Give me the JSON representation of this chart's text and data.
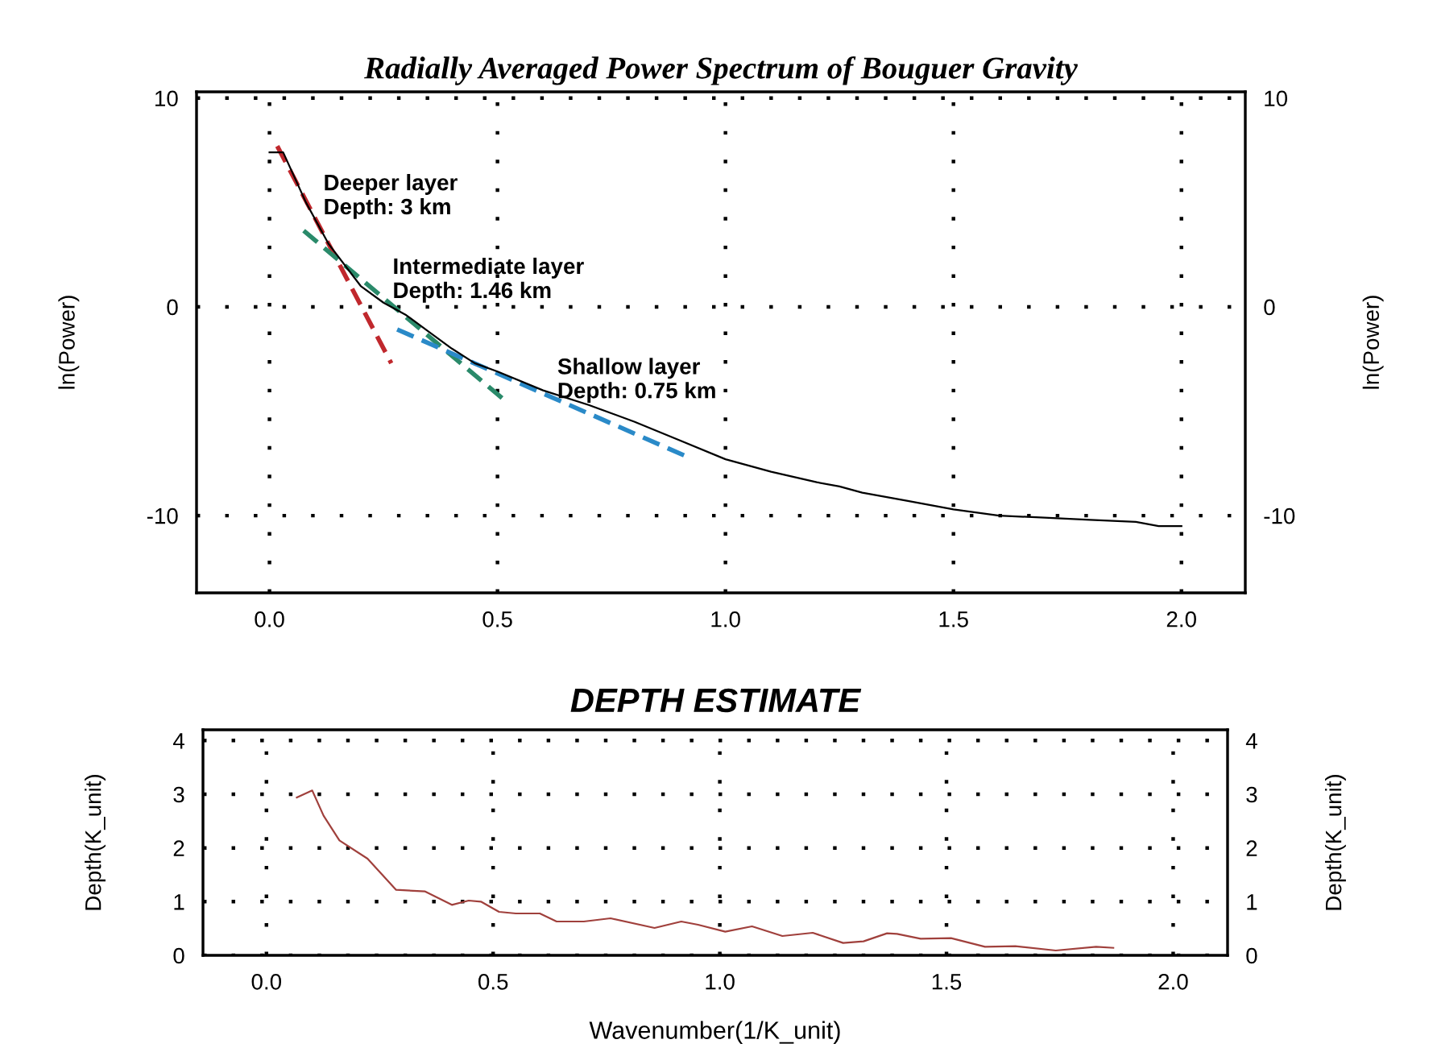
{
  "chart_data": [
    {
      "type": "line",
      "title": "Radially Averaged Power Spectrum of Bouguer Gravity",
      "ylabel": "ln(Power)",
      "y2label": "ln(Power)",
      "xlim": [
        -0.16,
        2.14
      ],
      "xticks": [
        {
          "value": 0,
          "label": "0.0"
        },
        {
          "value": 0.5,
          "label": "0.5"
        },
        {
          "value": 1,
          "label": "1.0"
        },
        {
          "value": 1.5,
          "label": "1.5"
        },
        {
          "value": 2,
          "label": "2.0"
        }
      ],
      "ylim": [
        -13.7,
        10.3
      ],
      "yticks": [
        -10,
        0,
        10
      ],
      "y2lim": [
        -13.7,
        10.3
      ],
      "y2ticks": [
        -10,
        0,
        10
      ],
      "grid": true,
      "legend": false,
      "series": [
        {
          "color": "#000000",
          "line_style": "solid",
          "x": [
            0.0,
            0.03,
            0.08,
            0.13,
            0.2,
            0.25,
            0.3,
            0.35,
            0.4,
            0.45,
            0.5,
            0.6,
            0.7,
            0.8,
            0.9,
            1.0,
            1.1,
            1.2,
            1.25,
            1.3,
            1.4,
            1.5,
            1.6,
            1.7,
            1.8,
            1.9,
            1.95,
            2.0
          ],
          "values": [
            7.4,
            7.4,
            5.0,
            3.0,
            1.0,
            0.2,
            -0.4,
            -1.2,
            -2.0,
            -2.7,
            -3.1,
            -4.0,
            -4.7,
            -5.5,
            -6.4,
            -7.3,
            -7.9,
            -8.4,
            -8.6,
            -8.9,
            -9.3,
            -9.7,
            -10.0,
            -10.1,
            -10.2,
            -10.3,
            -10.5,
            -10.5
          ]
        },
        {
          "color": "#c0282d",
          "line_style": "dashed",
          "x": [
            0.017,
            0.267
          ],
          "values": [
            7.7,
            -2.7
          ]
        },
        {
          "color": "#2a8a6a",
          "line_style": "dashed",
          "x": [
            0.075,
            0.517
          ],
          "values": [
            3.65,
            -4.5
          ]
        },
        {
          "color": "#2a8ac8",
          "line_style": "dashed",
          "x": [
            0.28,
            0.918
          ],
          "values": [
            -1.08,
            -7.2
          ]
        }
      ],
      "annotations": [
        "Deeper layer\nDepth: 3 km",
        "Intermediate layer\nDepth: 1.46 km",
        "Shallow layer\nDepth: 0.75 km"
      ]
    },
    {
      "type": "line",
      "title": "DEPTH ESTIMATE",
      "xlabel": "Wavenumber(1/K_unit)",
      "ylabel": "Depth(K_unit)",
      "y2label": "Depth(K_unit)",
      "xlim": [
        -0.14,
        2.12
      ],
      "xticks": [
        {
          "value": 0,
          "label": "0.0"
        },
        {
          "value": 0.5,
          "label": "0.5"
        },
        {
          "value": 1,
          "label": "1.0"
        },
        {
          "value": 1.5,
          "label": "1.5"
        },
        {
          "value": 2,
          "label": "2.0"
        }
      ],
      "ylim": [
        0,
        4.2
      ],
      "yticks": [
        0,
        1,
        2,
        3,
        4
      ],
      "y2lim": [
        0,
        4.2
      ],
      "y2ticks": [
        0,
        1,
        2,
        3,
        4
      ],
      "grid": true,
      "legend": false,
      "series": [
        {
          "color": "#a0403c",
          "line_style": "solid",
          "x": [
            0.067,
            0.101,
            0.126,
            0.161,
            0.223,
            0.286,
            0.35,
            0.409,
            0.446,
            0.473,
            0.513,
            0.55,
            0.603,
            0.64,
            0.7,
            0.759,
            0.856,
            0.915,
            0.952,
            1.012,
            1.071,
            1.138,
            1.205,
            1.272,
            1.317,
            1.369,
            1.391,
            1.443,
            1.51,
            1.585,
            1.652,
            1.741,
            1.83,
            1.868
          ],
          "values": [
            2.94,
            3.07,
            2.6,
            2.14,
            1.8,
            1.22,
            1.19,
            0.94,
            1.02,
            1.0,
            0.81,
            0.78,
            0.78,
            0.63,
            0.63,
            0.69,
            0.51,
            0.63,
            0.57,
            0.44,
            0.54,
            0.36,
            0.42,
            0.23,
            0.26,
            0.41,
            0.4,
            0.31,
            0.32,
            0.16,
            0.17,
            0.09,
            0.16,
            0.14
          ]
        }
      ]
    }
  ]
}
